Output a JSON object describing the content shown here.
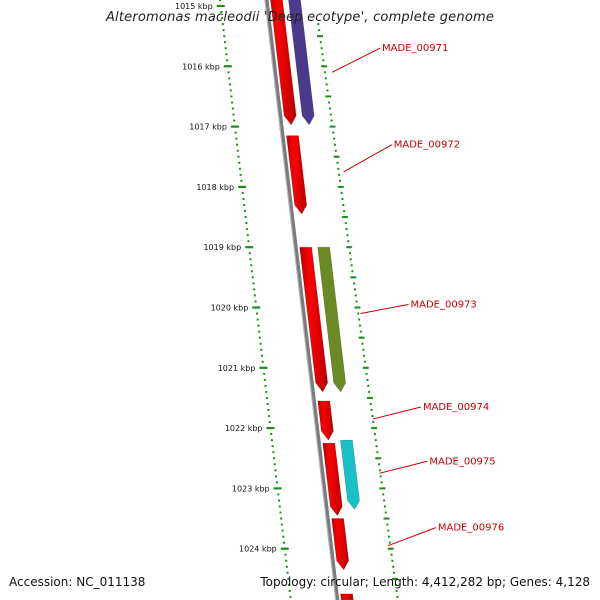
{
  "title": "Alteromonas macleodii 'Deep ecotype', complete genome",
  "accession_text": "Accession: NC_011138",
  "topology_text": "Topology: circular; Length: 4,412,282 bp; Genes: 4,128",
  "colors": {
    "backbone": "#7a7a7a",
    "cds": "#ff0000",
    "tick": "#1e8c1e",
    "label": "#cc0000",
    "feature_purple": "#4b3a8c",
    "feature_olive": "#6b8a24",
    "feature_cyan": "#18c0c8"
  },
  "map": {
    "scale_labels": [
      "1015 kbp",
      "1016 kbp",
      "1017 kbp",
      "1018 kbp",
      "1019 kbp",
      "1020 kbp",
      "1021 kbp",
      "1022 kbp",
      "1023 kbp",
      "1024 kbp"
    ],
    "cds_features": [
      {
        "start": 1014.5,
        "end": 1016.97
      },
      {
        "start": 1017.15,
        "end": 1018.45
      },
      {
        "start": 1019.0,
        "end": 1021.4
      },
      {
        "start": 1021.55,
        "end": 1022.2
      },
      {
        "start": 1022.25,
        "end": 1023.45
      },
      {
        "start": 1023.5,
        "end": 1024.35
      },
      {
        "start": 1024.75,
        "end": 1025.3
      }
    ],
    "annotation_features": [
      {
        "start": 1014.5,
        "end": 1016.97,
        "color": "#4b3a8c"
      },
      {
        "start": 1019.0,
        "end": 1021.4,
        "color": "#6b8a24"
      },
      {
        "start": 1022.2,
        "end": 1023.35,
        "color": "#18c0c8"
      }
    ],
    "gene_labels": [
      {
        "text": "MADE_00971",
        "pos": 1015.7,
        "anchor_pos": 1016.1
      },
      {
        "text": "MADE_00972",
        "pos": 1017.3,
        "anchor_pos": 1017.75
      },
      {
        "text": "MADE_00973",
        "pos": 1019.95,
        "anchor_pos": 1020.1
      },
      {
        "text": "MADE_00974",
        "pos": 1021.65,
        "anchor_pos": 1021.85
      },
      {
        "text": "MADE_00975",
        "pos": 1022.55,
        "anchor_pos": 1022.75
      },
      {
        "text": "MADE_00976",
        "pos": 1023.65,
        "anchor_pos": 1023.95
      }
    ]
  }
}
